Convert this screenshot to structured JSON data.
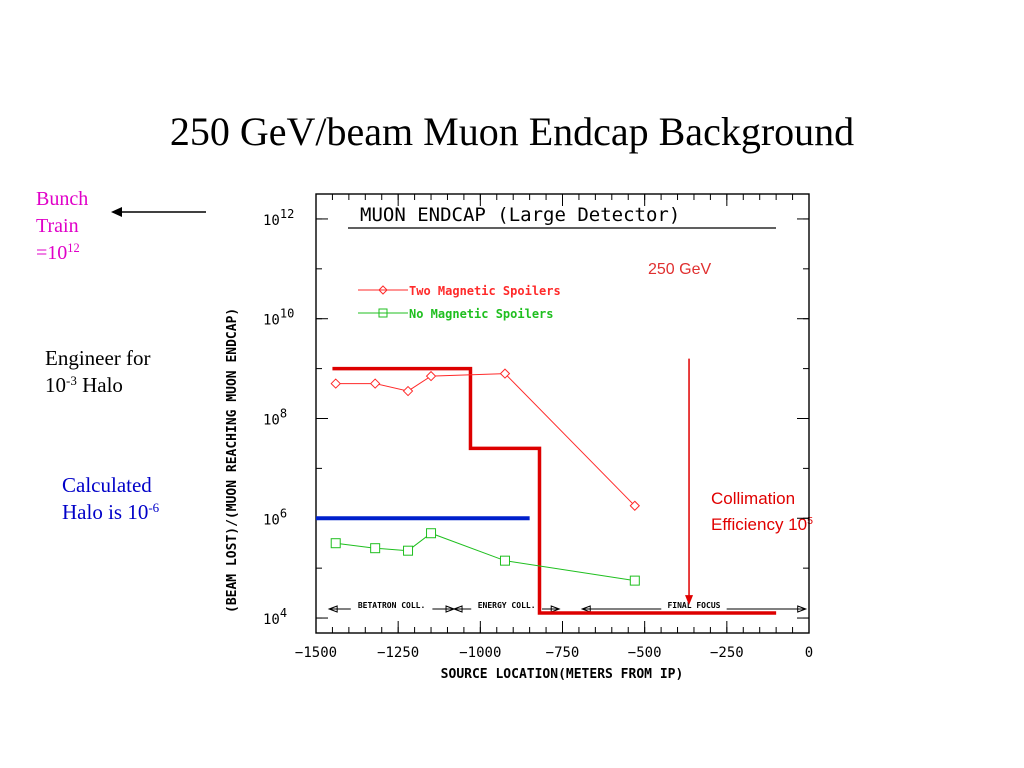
{
  "slide": {
    "title": "250 GeV/beam Muon Endcap Background"
  },
  "notes": {
    "bunch_train_line1": "Bunch",
    "bunch_train_line2": "Train",
    "bunch_train_line3_base": "=10",
    "bunch_train_line3_exp": "12",
    "engineer_line1": "Engineer for",
    "engineer_line2_base": "10",
    "engineer_line2_exp": "-3",
    "engineer_line2_tail": " Halo",
    "halo_line1": "Calculated",
    "halo_line2_base": "Halo is 10",
    "halo_line2_exp": "-6",
    "collimation_line1": "Collimation",
    "collimation_line2_base": "Efficiency 10",
    "collimation_line2_exp": "5"
  },
  "colors": {
    "spoilers": "#ff2a2a",
    "no_spoilers": "#1fbf1f",
    "step_line": "#dd0000",
    "halo_line": "#0020cc",
    "note_magenta": "#e000c8",
    "note_blue": "#0000c8",
    "note_red": "#e00000"
  },
  "chart_data": {
    "type": "line",
    "title": "MUON ENDCAP (Large Detector)",
    "annotation": "250 GeV",
    "xlabel": "SOURCE LOCATION(METERS FROM IP)",
    "ylabel": "(BEAM LOST)/(MUON REACHING MUON ENDCAP)",
    "xlim": [
      -1500,
      0
    ],
    "ylim_log10": [
      3.7,
      12.5
    ],
    "y_scale": "log",
    "x_ticks": [
      -1500,
      -1250,
      -1000,
      -750,
      -500,
      -250,
      0
    ],
    "x_tick_labels": [
      "−1500",
      "−1250",
      "−1000",
      "−750",
      "−500",
      "−250",
      "0"
    ],
    "y_ticks": [
      {
        "base": "10",
        "exp": "4",
        "log10": 4
      },
      {
        "base": "10",
        "exp": "6",
        "log10": 6
      },
      {
        "base": "10",
        "exp": "8",
        "log10": 8
      },
      {
        "base": "10",
        "exp": "10",
        "log10": 10
      },
      {
        "base": "10",
        "exp": "12",
        "log10": 12
      }
    ],
    "legend_placement": "upper-left",
    "series": [
      {
        "name": "Two Magnetic Spoilers",
        "marker": "diamond",
        "x": [
          -1440,
          -1320,
          -1220,
          -1150,
          -925,
          -530
        ],
        "y_log10": [
          8.7,
          8.7,
          8.55,
          8.85,
          8.9,
          6.25
        ]
      },
      {
        "name": "No Magnetic Spoilers",
        "marker": "square",
        "x": [
          -1440,
          -1320,
          -1220,
          -1150,
          -925,
          -530
        ],
        "y_log10": [
          5.5,
          5.4,
          5.35,
          5.7,
          5.15,
          4.75
        ]
      }
    ],
    "step_line": {
      "x": [
        -1450,
        -1030,
        -1030,
        -820,
        -820,
        -100
      ],
      "y_log10": [
        9.0,
        9.0,
        7.4,
        7.4,
        4.1,
        4.1
      ]
    },
    "halo_line": {
      "x": [
        -1500,
        -850
      ],
      "y_log10": 6.0
    },
    "collimation_arrow": {
      "x": -365,
      "y_log10_from": 9.2,
      "y_log10_to": 4.3
    },
    "regions": [
      {
        "label": "BETATRON COLL.",
        "x_from": -1460,
        "x_to": -1080
      },
      {
        "label": "ENERGY COLL.",
        "x_from": -1080,
        "x_to": -760
      },
      {
        "label": "FINAL FOCUS",
        "x_from": -690,
        "x_to": -10
      }
    ]
  }
}
